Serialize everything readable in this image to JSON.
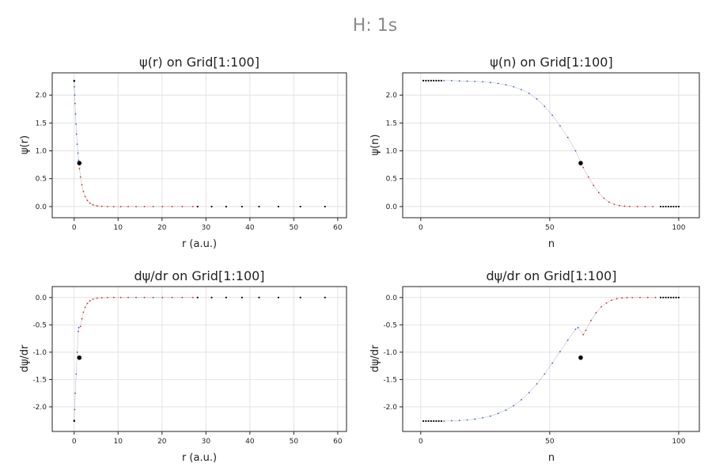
{
  "figure": {
    "title": "H: 1s"
  },
  "colors": {
    "blue_series": "#2f5fe0",
    "red_series": "#e32222",
    "gray_connector": "#9a9a9a",
    "markers": "#000000"
  },
  "chart_data": [
    {
      "type": "scatter",
      "title": "ψ(r) on Grid[1:100]",
      "xlabel": "r (a.u.)",
      "ylabel": "ψ(r)",
      "xlim": [
        -5,
        62
      ],
      "ylim": [
        -0.2,
        2.4
      ],
      "xticks": [
        0,
        10,
        20,
        30,
        40,
        50,
        60
      ],
      "yticks": [
        0.0,
        0.5,
        1.0,
        1.5,
        2.0
      ],
      "xtick_labels": [
        "0",
        "10",
        "20",
        "30",
        "40",
        "50",
        "60"
      ],
      "ytick_labels": [
        "0.0",
        "0.5",
        "1.0",
        "1.5",
        "2.0"
      ],
      "grid": true,
      "series": [
        {
          "values": [
            [
              0.0,
              2.26
            ],
            [
              0.05,
              2.15
            ],
            [
              0.12,
              2.0
            ],
            [
              0.2,
              1.85
            ],
            [
              0.3,
              1.66
            ],
            [
              0.42,
              1.48
            ],
            [
              0.55,
              1.3
            ],
            [
              0.7,
              1.12
            ],
            [
              0.85,
              0.96
            ],
            [
              1.0,
              0.83
            ]
          ]
        },
        {
          "values": [
            [
              1.2,
              0.68
            ],
            [
              1.45,
              0.53
            ],
            [
              1.75,
              0.39
            ],
            [
              2.1,
              0.27
            ],
            [
              2.5,
              0.18
            ],
            [
              3.0,
              0.11
            ],
            [
              3.6,
              0.06
            ],
            [
              4.3,
              0.03
            ],
            [
              5.2,
              0.012
            ],
            [
              6.3,
              0.004
            ],
            [
              7.6,
              0.001
            ],
            [
              9.0,
              0.0
            ],
            [
              10.6,
              0.0
            ],
            [
              12.3,
              0.0
            ],
            [
              14.1,
              0.0
            ],
            [
              16.0,
              0.0
            ],
            [
              18.0,
              0.0
            ],
            [
              20.1,
              0.0
            ],
            [
              22.3,
              0.0
            ],
            [
              24.6,
              0.0
            ],
            [
              27.0,
              0.0
            ]
          ]
        }
      ],
      "markers": [
        [
          0.0,
          2.26
        ],
        [
          0.0,
          2.25
        ],
        [
          1.18,
          0.78
        ],
        [
          28.1,
          0.0
        ],
        [
          31.3,
          0.0
        ],
        [
          34.6,
          0.0
        ],
        [
          38.2,
          0.0
        ],
        [
          42.1,
          0.0
        ],
        [
          46.5,
          0.0
        ],
        [
          51.5,
          0.0
        ],
        [
          57.1,
          0.0
        ]
      ]
    },
    {
      "type": "scatter",
      "title": "ψ(n) on Grid[1:100]",
      "xlabel": "n",
      "ylabel": "ψ(n)",
      "xlim": [
        -7,
        108
      ],
      "ylim": [
        -0.2,
        2.4
      ],
      "xticks": [
        0,
        50,
        100
      ],
      "yticks": [
        0.0,
        0.5,
        1.0,
        1.5,
        2.0
      ],
      "xtick_labels": [
        "0",
        "50",
        "100"
      ],
      "ytick_labels": [
        "0.0",
        "0.5",
        "1.0",
        "1.5",
        "2.0"
      ],
      "grid": true,
      "series": [
        {
          "values": [
            [
              9,
              2.26
            ],
            [
              12,
              2.26
            ],
            [
              15,
              2.255
            ],
            [
              18,
              2.25
            ],
            [
              21,
              2.245
            ],
            [
              24,
              2.24
            ],
            [
              27,
              2.225
            ],
            [
              30,
              2.21
            ],
            [
              33,
              2.185
            ],
            [
              36,
              2.15
            ],
            [
              39,
              2.1
            ],
            [
              42,
              2.03
            ],
            [
              45,
              1.93
            ],
            [
              48,
              1.8
            ],
            [
              51,
              1.64
            ],
            [
              54,
              1.45
            ],
            [
              57,
              1.24
            ],
            [
              60,
              1.0
            ],
            [
              62,
              0.8
            ]
          ]
        },
        {
          "values": [
            [
              63,
              0.7
            ],
            [
              65,
              0.53
            ],
            [
              67,
              0.38
            ],
            [
              69,
              0.25
            ],
            [
              71,
              0.15
            ],
            [
              73,
              0.08
            ],
            [
              75,
              0.04
            ],
            [
              77,
              0.018
            ],
            [
              79,
              0.007
            ],
            [
              81,
              0.002
            ],
            [
              84,
              0.0
            ],
            [
              87,
              0.0
            ],
            [
              90,
              0.0
            ]
          ]
        }
      ],
      "markers": [
        [
          1,
          2.26
        ],
        [
          2,
          2.26
        ],
        [
          3,
          2.26
        ],
        [
          4,
          2.26
        ],
        [
          5,
          2.26
        ],
        [
          6,
          2.26
        ],
        [
          7,
          2.26
        ],
        [
          8,
          2.26
        ],
        [
          62,
          0.78
        ],
        [
          93,
          0.0
        ],
        [
          94,
          0.0
        ],
        [
          95,
          0.0
        ],
        [
          96,
          0.0
        ],
        [
          97,
          0.0
        ],
        [
          98,
          0.0
        ],
        [
          99,
          0.0
        ],
        [
          100,
          0.0
        ]
      ]
    },
    {
      "type": "scatter",
      "title": "dψ/dr on Grid[1:100]",
      "xlabel": "r (a.u.)",
      "ylabel": "dψ/dr",
      "xlim": [
        -5,
        62
      ],
      "ylim": [
        -2.45,
        0.2
      ],
      "xticks": [
        0,
        10,
        20,
        30,
        40,
        50,
        60
      ],
      "yticks": [
        0.0,
        -0.5,
        -1.0,
        -1.5,
        -2.0
      ],
      "xtick_labels": [
        "0",
        "10",
        "20",
        "30",
        "40",
        "50",
        "60"
      ],
      "ytick_labels": [
        "0.0",
        "-0.5",
        "-1.0",
        "-1.5",
        "-2.0"
      ],
      "grid": true,
      "series": [
        {
          "values": [
            [
              0.0,
              -2.26
            ],
            [
              0.1,
              -2.05
            ],
            [
              0.25,
              -1.75
            ],
            [
              0.45,
              -1.4
            ],
            [
              0.7,
              -1.0
            ],
            [
              0.95,
              -0.62
            ],
            [
              1.05,
              -0.55
            ]
          ]
        },
        {
          "values": [
            [
              1.45,
              -0.53
            ],
            [
              1.75,
              -0.39
            ],
            [
              2.1,
              -0.27
            ],
            [
              2.5,
              -0.18
            ],
            [
              3.0,
              -0.11
            ],
            [
              3.6,
              -0.06
            ],
            [
              4.3,
              -0.03
            ],
            [
              5.2,
              -0.012
            ],
            [
              6.3,
              -0.004
            ],
            [
              7.6,
              -0.001
            ],
            [
              9.0,
              0.0
            ],
            [
              10.6,
              0.0
            ],
            [
              12.3,
              0.0
            ],
            [
              14.1,
              0.0
            ],
            [
              16.0,
              0.0
            ],
            [
              18.0,
              0.0
            ],
            [
              20.1,
              0.0
            ],
            [
              22.3,
              0.0
            ],
            [
              24.6,
              0.0
            ],
            [
              27.0,
              0.0
            ]
          ]
        }
      ],
      "markers": [
        [
          0.0,
          -2.26
        ],
        [
          0.0,
          -2.25
        ],
        [
          1.18,
          -1.1
        ],
        [
          28.1,
          0.0
        ],
        [
          31.3,
          0.0
        ],
        [
          34.6,
          0.0
        ],
        [
          38.2,
          0.0
        ],
        [
          42.1,
          0.0
        ],
        [
          46.5,
          0.0
        ],
        [
          51.5,
          0.0
        ],
        [
          57.1,
          0.0
        ]
      ]
    },
    {
      "type": "scatter",
      "title": "dψ/dr on Grid[1:100]",
      "xlabel": "n",
      "ylabel": "dψ/dr",
      "xlim": [
        -7,
        108
      ],
      "ylim": [
        -2.45,
        0.2
      ],
      "xticks": [
        0,
        50,
        100
      ],
      "yticks": [
        0.0,
        -0.5,
        -1.0,
        -1.5,
        -2.0
      ],
      "xtick_labels": [
        "0",
        "50",
        "100"
      ],
      "ytick_labels": [
        "0.0",
        "-0.5",
        "-1.0",
        "-1.5",
        "-2.0"
      ],
      "grid": true,
      "series": [
        {
          "values": [
            [
              9,
              -2.26
            ],
            [
              12,
              -2.255
            ],
            [
              15,
              -2.25
            ],
            [
              18,
              -2.24
            ],
            [
              21,
              -2.225
            ],
            [
              24,
              -2.2
            ],
            [
              27,
              -2.17
            ],
            [
              30,
              -2.12
            ],
            [
              33,
              -2.06
            ],
            [
              36,
              -1.98
            ],
            [
              39,
              -1.87
            ],
            [
              42,
              -1.74
            ],
            [
              45,
              -1.58
            ],
            [
              48,
              -1.4
            ],
            [
              51,
              -1.2
            ],
            [
              54,
              -0.99
            ],
            [
              57,
              -0.78
            ],
            [
              60,
              -0.58
            ],
            [
              61,
              -0.55
            ]
          ]
        },
        {
          "values": [
            [
              63,
              -0.68
            ],
            [
              64,
              -0.6
            ],
            [
              66,
              -0.42
            ],
            [
              68,
              -0.28
            ],
            [
              70,
              -0.17
            ],
            [
              72,
              -0.1
            ],
            [
              74,
              -0.05
            ],
            [
              76,
              -0.022
            ],
            [
              78,
              -0.009
            ],
            [
              80,
              -0.003
            ],
            [
              82,
              -0.001
            ],
            [
              85,
              0.0
            ],
            [
              88,
              0.0
            ],
            [
              91,
              0.0
            ]
          ]
        }
      ],
      "markers": [
        [
          1,
          -2.26
        ],
        [
          2,
          -2.26
        ],
        [
          3,
          -2.26
        ],
        [
          4,
          -2.26
        ],
        [
          5,
          -2.26
        ],
        [
          6,
          -2.26
        ],
        [
          7,
          -2.26
        ],
        [
          8,
          -2.26
        ],
        [
          62,
          -1.1
        ],
        [
          93,
          0.0
        ],
        [
          94,
          0.0
        ],
        [
          95,
          0.0
        ],
        [
          96,
          0.0
        ],
        [
          97,
          0.0
        ],
        [
          98,
          0.0
        ],
        [
          99,
          0.0
        ],
        [
          100,
          0.0
        ]
      ]
    }
  ]
}
